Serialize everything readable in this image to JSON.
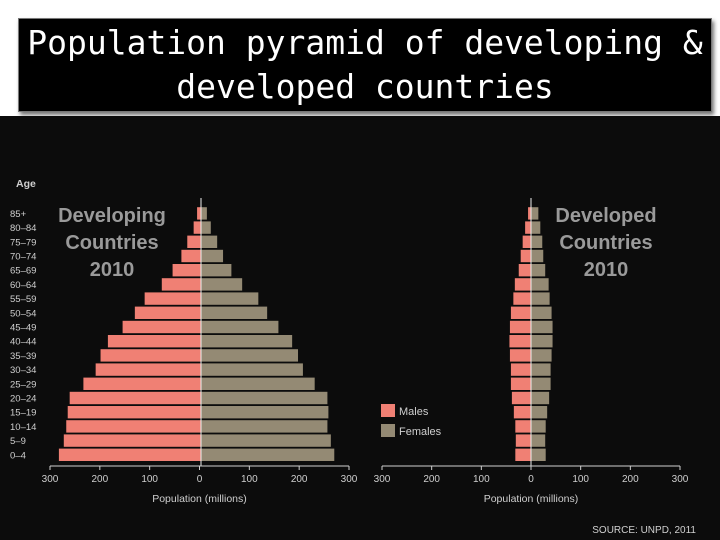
{
  "title": {
    "line1": "Population pyramid of developing &",
    "line2": "developed countries"
  },
  "source": "SOURCE: UNPD, 2011",
  "colors": {
    "background": "#0c0c0c",
    "males": "#f08074",
    "females": "#948a74",
    "text": "#cfcfcf",
    "label_big": "#9a9a9a"
  },
  "chart_data": [
    {
      "type": "bar",
      "orientation": "horizontal-pyramid",
      "title_lines": [
        "Developing",
        "Countries",
        "2010"
      ],
      "age_axis_title": "Age",
      "categories": [
        "0–4",
        "5–9",
        "10–14",
        "15–19",
        "20–24",
        "25–29",
        "30–34",
        "35–39",
        "40–44",
        "45–49",
        "50–54",
        "55–59",
        "60–64",
        "65–69",
        "70–74",
        "75–79",
        "80–84",
        "85+"
      ],
      "series": [
        {
          "name": "Males",
          "values": [
            290,
            280,
            275,
            272,
            268,
            240,
            215,
            205,
            190,
            160,
            135,
            115,
            80,
            58,
            40,
            28,
            15,
            8
          ]
        },
        {
          "name": "Females",
          "values": [
            272,
            265,
            258,
            260,
            258,
            232,
            208,
            198,
            186,
            158,
            135,
            117,
            84,
            62,
            45,
            33,
            20,
            12
          ]
        }
      ],
      "xlim": [
        -300,
        300
      ],
      "xticks": [
        "300",
        "200",
        "100",
        "0",
        "100",
        "200",
        "300"
      ],
      "xlabel": "Population (millions)"
    },
    {
      "type": "bar",
      "orientation": "horizontal-pyramid",
      "title_lines": [
        "Developed",
        "Countries",
        "2010"
      ],
      "categories": [
        "0–4",
        "5–9",
        "10–14",
        "15–19",
        "20–24",
        "25–29",
        "30–34",
        "35–39",
        "40–44",
        "45–49",
        "50–54",
        "55–59",
        "60–64",
        "65–69",
        "70–74",
        "75–79",
        "80–84",
        "85+"
      ],
      "series": [
        {
          "name": "Males",
          "values": [
            32,
            31,
            32,
            35,
            39,
            41,
            41,
            43,
            44,
            43,
            41,
            36,
            33,
            25,
            21,
            17,
            12,
            6
          ]
        },
        {
          "name": "Females",
          "values": [
            30,
            29,
            30,
            33,
            37,
            40,
            40,
            42,
            44,
            44,
            42,
            38,
            36,
            29,
            25,
            23,
            19,
            15
          ]
        }
      ],
      "xlim": [
        -300,
        300
      ],
      "xticks": [
        "300",
        "200",
        "100",
        "0",
        "100",
        "200",
        "300"
      ],
      "xlabel": "Population (millions)"
    }
  ],
  "legend": {
    "items": [
      {
        "name": "Males"
      },
      {
        "name": "Females"
      }
    ]
  }
}
